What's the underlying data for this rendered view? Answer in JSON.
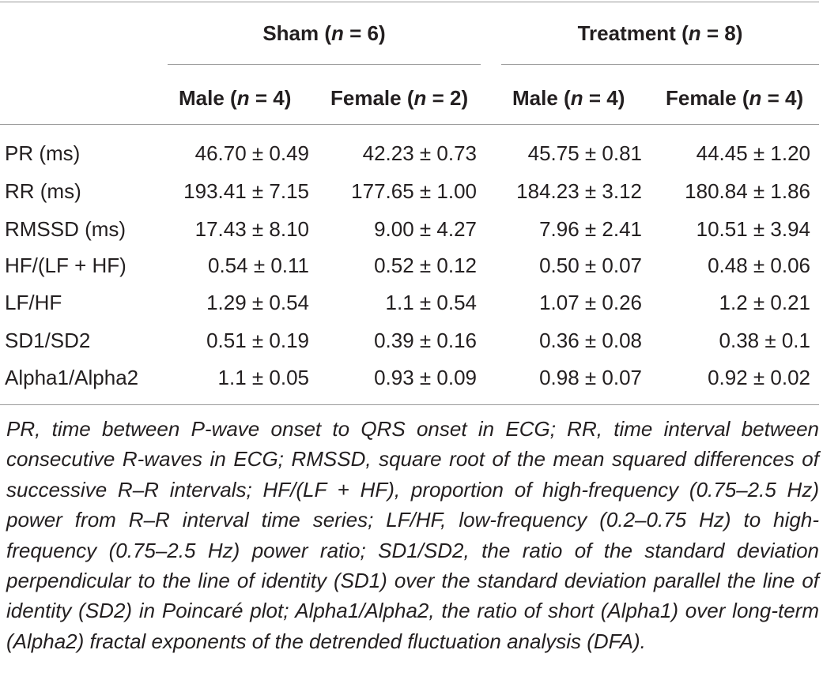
{
  "table": {
    "groups": [
      {
        "name": "Sham",
        "n_label": "n",
        "n_value": "= 6"
      },
      {
        "name": "Treatment",
        "n_label": "n",
        "n_value": "= 8"
      }
    ],
    "subheaders": [
      {
        "name": "Male",
        "n_label": "n",
        "n_value": "= 4"
      },
      {
        "name": "Female",
        "n_label": "n",
        "n_value": "= 2"
      },
      {
        "name": "Male",
        "n_label": "n",
        "n_value": "= 4"
      },
      {
        "name": "Female",
        "n_label": "n",
        "n_value": "= 4"
      }
    ],
    "rows": [
      {
        "label": "PR (ms)",
        "values": [
          "46.70 ± 0.49",
          "42.23 ± 0.73",
          "45.75 ± 0.81",
          "44.45 ± 1.20"
        ]
      },
      {
        "label": "RR (ms)",
        "values": [
          "193.41 ± 7.15",
          "177.65 ± 1.00",
          "184.23 ± 3.12",
          "180.84 ± 1.86"
        ]
      },
      {
        "label": "RMSSD (ms)",
        "values": [
          "17.43 ± 8.10",
          "9.00 ± 4.27",
          "7.96 ± 2.41",
          "10.51 ± 3.94"
        ]
      },
      {
        "label": "HF/(LF + HF)",
        "values": [
          "0.54 ± 0.11",
          "0.52 ± 0.12",
          "0.50 ± 0.07",
          "0.48 ± 0.06"
        ]
      },
      {
        "label": "LF/HF",
        "values": [
          "1.29 ± 0.54",
          "1.1 ± 0.54",
          "1.07 ± 0.26",
          "1.2 ± 0.21"
        ]
      },
      {
        "label": "SD1/SD2",
        "values": [
          "0.51 ± 0.19",
          "0.39 ± 0.16",
          "0.36 ± 0.08",
          "0.38 ± 0.1"
        ]
      },
      {
        "label": "Alpha1/Alpha2",
        "values": [
          "1.1 ± 0.05",
          "0.93 ± 0.09",
          "0.98 ± 0.07",
          "0.92 ± 0.02"
        ]
      }
    ]
  },
  "footnote": "PR, time between P-wave onset to QRS onset in ECG; RR, time interval between consecutive R-waves in ECG; RMSSD, square root of the mean squared differences of successive R–R intervals; HF/(LF + HF), proportion of high-frequency (0.75–2.5 Hz) power from R–R interval time series; LF/HF, low-frequency (0.2–0.75 Hz) to high-frequency (0.75–2.5 Hz) power ratio; SD1/SD2, the ratio of the standard deviation perpendicular to the line of identity (SD1) over the standard deviation parallel the line of identity (SD2) in Poincaré plot; Alpha1/Alpha2, the ratio of short (Alpha1) over long-term (Alpha2) fractal exponents of the detrended fluctuation analysis (DFA)."
}
